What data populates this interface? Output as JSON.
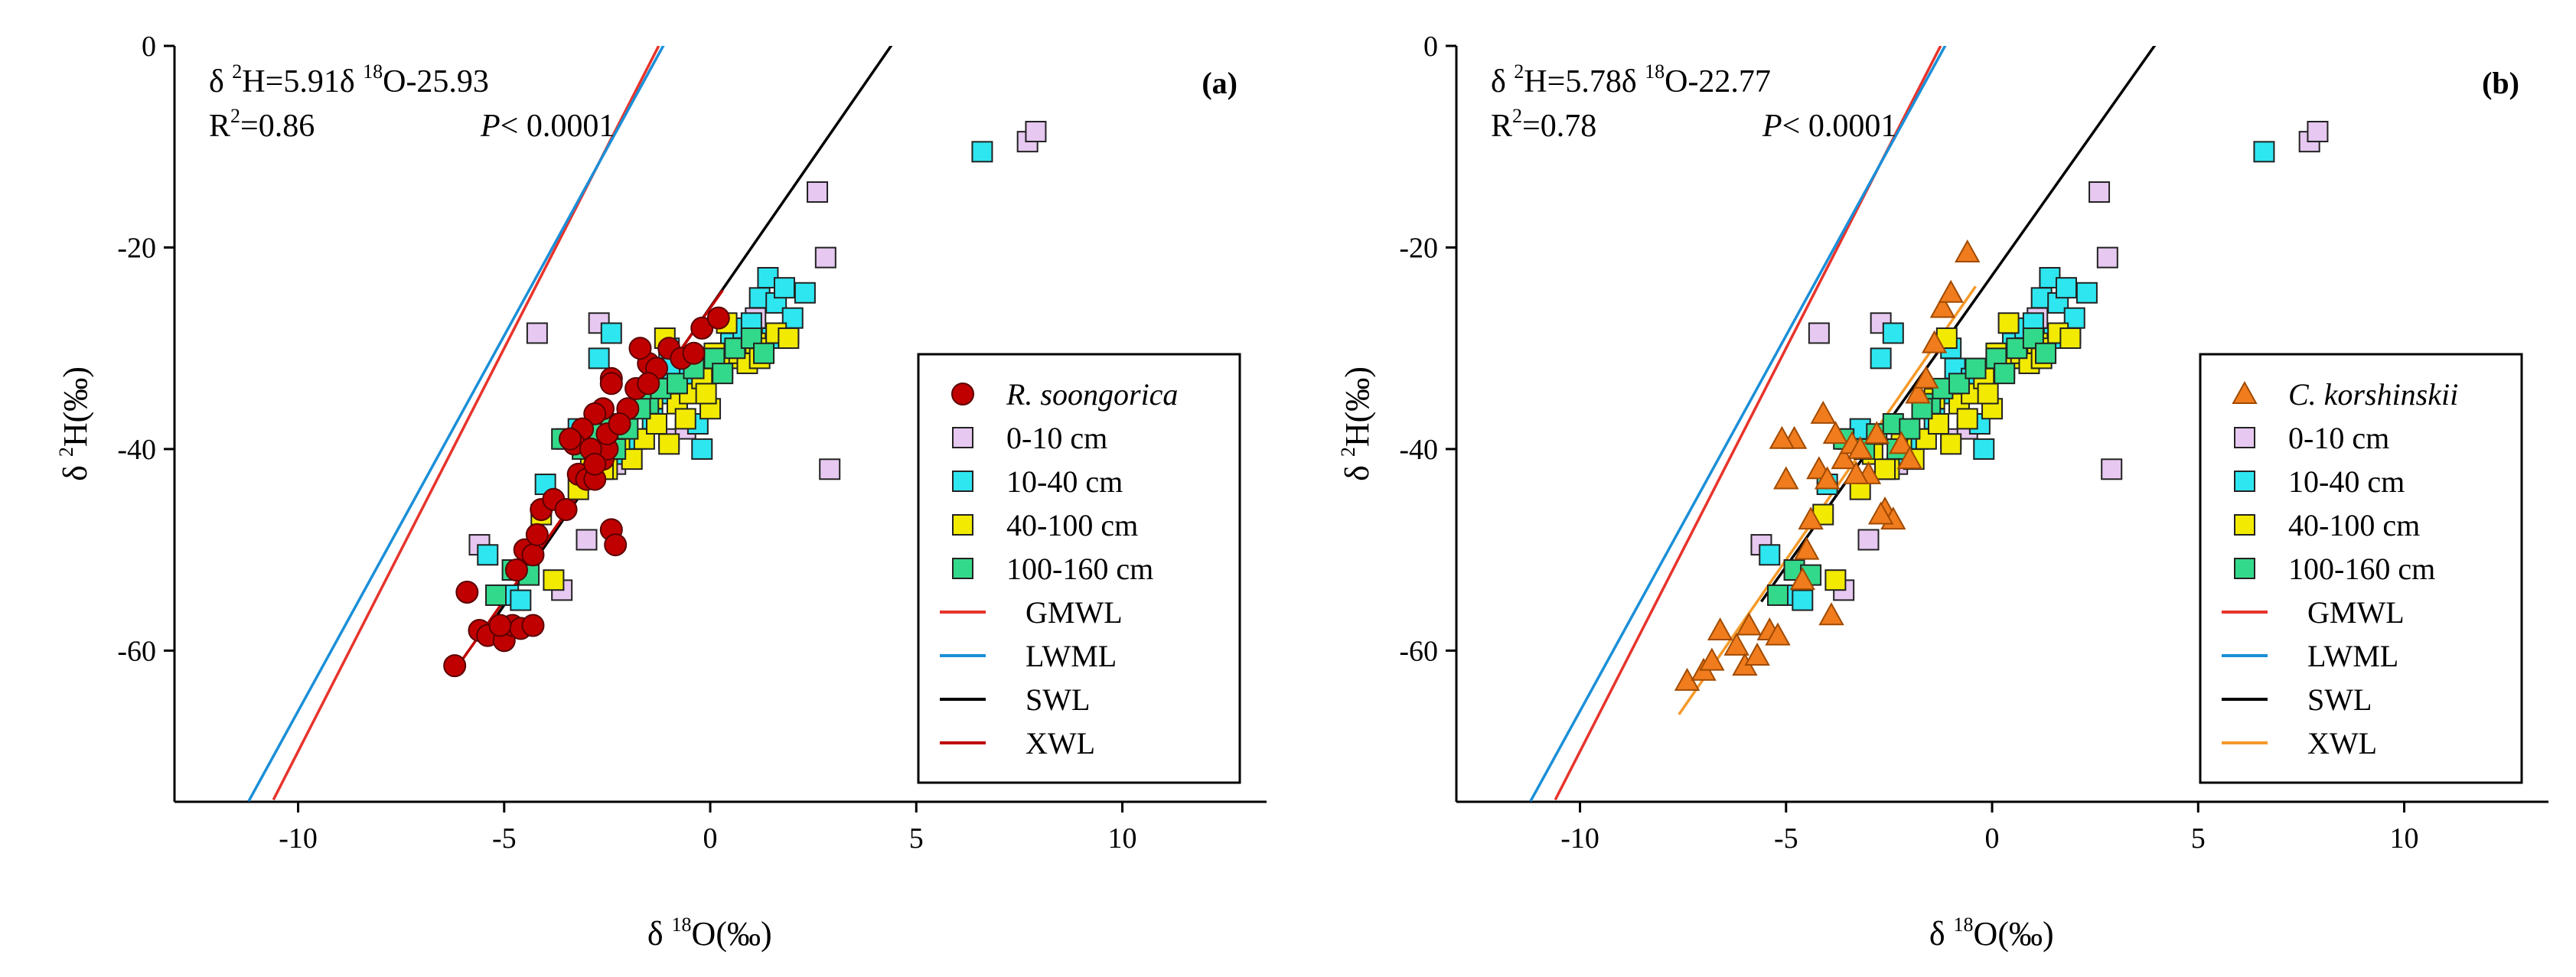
{
  "chart_data": [
    {
      "type": "scatter",
      "panel_label": "(a)",
      "equation": {
        "lhs_prefix": "δ ",
        "lhs_sup": "2",
        "lhs_rest": "H=5.91δ ",
        "rhs_sup": "18",
        "rhs_rest": "O-25.93",
        "r2_base": "R",
        "r2_sup": "2",
        "r2_rest": "=0.86",
        "p_label": "P",
        "p_rest": "< 0.0001"
      },
      "xlabel": {
        "prefix": "δ ",
        "sup": "18",
        "rest": "O(‰)"
      },
      "ylabel": {
        "prefix": "δ ",
        "sup": "2",
        "rest": "H(‰)"
      },
      "xlim": [
        -13,
        13.5
      ],
      "ylim": [
        -75,
        0
      ],
      "xticks": [
        -10,
        -5,
        0,
        5,
        10
      ],
      "yticks": [
        0,
        -20,
        -40,
        -60
      ],
      "legend": {
        "position": "right-middle",
        "entries": [
          {
            "label": "R. soongorica",
            "italic": true,
            "kind": "circle",
            "color": "#c00000"
          },
          {
            "label": "0-10 cm",
            "kind": "square",
            "color": "#e6c8f0"
          },
          {
            "label": "10-40 cm",
            "kind": "square",
            "color": "#2ee6f0"
          },
          {
            "label": "40-100 cm",
            "kind": "square",
            "color": "#f2ea00"
          },
          {
            "label": "100-160 cm",
            "kind": "square",
            "color": "#33d98a"
          },
          {
            "label": "GMWL",
            "kind": "line",
            "color": "#e8332b"
          },
          {
            "label": "LWML",
            "kind": "line",
            "color": "#1a8fd8"
          },
          {
            "label": "SWL",
            "kind": "line",
            "color": "#000000"
          },
          {
            "label": "XWL",
            "kind": "line",
            "color": "#c00000"
          }
        ]
      },
      "lines": [
        {
          "name": "GMWL",
          "color": "#e8332b",
          "slope": 8.0,
          "intercept": 10.0,
          "x": [
            -10.6,
            -1.25
          ]
        },
        {
          "name": "LWML",
          "color": "#1a8fd8",
          "slope": 7.45,
          "intercept": 8.5,
          "x": [
            -11.2,
            -0.6
          ]
        },
        {
          "name": "SWL",
          "color": "#000000",
          "slope": 5.91,
          "intercept": -25.93,
          "x": [
            -5.6,
            8.0
          ]
        },
        {
          "name": "XWL",
          "color": "#c00000",
          "slope": 5.8,
          "intercept": -26.0,
          "x": [
            -6.3,
            0.3
          ]
        }
      ],
      "series": [
        {
          "name": "R. soongorica",
          "kind": "circle",
          "color": "#c00000",
          "x": [
            -6.2,
            -5.9,
            -5.6,
            -5.4,
            -5.0,
            -4.8,
            -4.6,
            -4.3,
            -5.1,
            -4.7,
            -4.5,
            -4.3,
            -4.2,
            -4.1,
            -3.8,
            -3.5,
            -3.2,
            -3.0,
            -2.8,
            -2.6,
            -2.5,
            -2.4,
            -2.3,
            -2.4,
            -2.6,
            -2.8,
            -3.1,
            -3.3,
            -2.9,
            -2.5,
            -2.0,
            -1.8,
            -1.5,
            -1.3,
            -1.0,
            -0.7,
            -0.4,
            -0.2,
            0.2,
            -1.5,
            -2.2,
            -2.4,
            -1.7,
            -3.4,
            -2.8
          ],
          "y": [
            -61.5,
            -54.2,
            -58.0,
            -58.5,
            -59.0,
            -57.5,
            -57.8,
            -57.5,
            -57.5,
            -52.0,
            -50.0,
            -50.5,
            -48.5,
            -46.0,
            -45.0,
            -46.0,
            -42.5,
            -43.0,
            -43.0,
            -41.0,
            -40.0,
            -48.0,
            -49.5,
            -33.0,
            -36.0,
            -36.5,
            -38.0,
            -39.5,
            -40.0,
            -38.5,
            -36.0,
            -34.0,
            -31.5,
            -32.0,
            -30.0,
            -31.0,
            -30.5,
            -28.0,
            -27.0,
            -33.5,
            -37.5,
            -33.5,
            -30.0,
            -39.0,
            -41.5
          ]
        },
        {
          "name": "0-10 cm",
          "kind": "square",
          "color": "#e6c8f0",
          "x": [
            -5.6,
            -4.2,
            -3.6,
            -2.7,
            -2.3,
            -1.0,
            -0.6,
            -0.2,
            0.8,
            1.1,
            1.9,
            2.6,
            2.8,
            2.9,
            7.7,
            7.9,
            -3.0,
            -0.3
          ],
          "y": [
            -49.5,
            -28.5,
            -54.0,
            -27.5,
            -41.5,
            -39.0,
            -38.0,
            -33.5,
            -28.5,
            -27.0,
            -28.5,
            -14.5,
            -21.0,
            -42.0,
            -9.5,
            -8.5,
            -49.0,
            -33.0
          ]
        },
        {
          "name": "10-40 cm",
          "kind": "square",
          "color": "#2ee6f0",
          "x": [
            -5.4,
            -4.9,
            -4.6,
            -4.0,
            -3.5,
            -3.2,
            -2.7,
            -2.4,
            -2.2,
            -1.8,
            -1.4,
            -1.2,
            -0.9,
            -0.5,
            -0.2,
            0.2,
            0.5,
            0.8,
            1.0,
            1.2,
            1.4,
            1.6,
            1.8,
            2.0,
            2.3,
            6.6,
            -0.3,
            0.6,
            1.5,
            -1.0
          ],
          "y": [
            -50.5,
            -54.5,
            -55.0,
            -43.5,
            -39.0,
            -38.0,
            -31.0,
            -28.5,
            -40.5,
            -39.0,
            -37.0,
            -34.5,
            -32.0,
            -33.0,
            -40.0,
            -30.5,
            -29.5,
            -28.0,
            -27.5,
            -25.0,
            -23.0,
            -25.5,
            -24.0,
            -27.0,
            -24.5,
            -10.5,
            -37.5,
            -31.0,
            -29.0,
            -30.0
          ]
        },
        {
          "name": "40-100 cm",
          "kind": "square",
          "color": "#f2ea00",
          "x": [
            -4.1,
            -3.8,
            -3.2,
            -2.9,
            -2.5,
            -2.2,
            -1.9,
            -1.6,
            -1.3,
            -1.0,
            -0.8,
            -0.5,
            -0.2,
            0.0,
            0.3,
            0.5,
            0.7,
            0.9,
            1.1,
            1.3,
            1.6,
            1.9,
            -1.1,
            0.1,
            -0.6,
            -1.4,
            -2.6,
            0.4,
            1.2,
            -0.1
          ],
          "y": [
            -46.5,
            -53.0,
            -44.0,
            -40.5,
            -42.0,
            -39.5,
            -41.0,
            -39.0,
            -37.5,
            -39.5,
            -35.5,
            -34.5,
            -33.0,
            -36.0,
            -32.0,
            -31.0,
            -30.5,
            -31.5,
            -29.5,
            -30.0,
            -28.5,
            -29.0,
            -29.0,
            -30.5,
            -37.0,
            -35.0,
            -42.0,
            -27.5,
            -31.0,
            -34.5
          ]
        },
        {
          "name": "100-160 cm",
          "kind": "square",
          "color": "#33d98a",
          "x": [
            -5.2,
            -4.8,
            -4.4,
            -3.6,
            -3.1,
            -2.8,
            -2.4,
            -2.0,
            -1.5,
            -1.2,
            -0.8,
            -0.4,
            0.1,
            0.6,
            1.0,
            1.3,
            -2.3,
            -1.7,
            0.3
          ],
          "y": [
            -54.5,
            -52.0,
            -52.5,
            -39.0,
            -40.0,
            -38.5,
            -37.5,
            -38.0,
            -35.5,
            -34.0,
            -33.5,
            -32.0,
            -31.0,
            -30.0,
            -29.0,
            -30.5,
            -40.0,
            -36.0,
            -32.5
          ]
        }
      ]
    },
    {
      "type": "scatter",
      "panel_label": "(b)",
      "equation": {
        "lhs_prefix": "δ ",
        "lhs_sup": "2",
        "lhs_rest": "H=5.78δ ",
        "rhs_sup": "18",
        "rhs_rest": "O-22.77",
        "r2_base": "R",
        "r2_sup": "2",
        "r2_rest": "=0.78",
        "p_label": "P",
        "p_rest": "< 0.0001"
      },
      "xlabel": {
        "prefix": "δ ",
        "sup": "18",
        "rest": "O(‰)"
      },
      "ylabel": {
        "prefix": "δ ",
        "sup": "2",
        "rest": "H(‰)"
      },
      "xlim": [
        -13,
        13.5
      ],
      "ylim": [
        -75,
        0
      ],
      "xticks": [
        -10,
        -5,
        0,
        5,
        10
      ],
      "yticks": [
        0,
        -20,
        -40,
        -60
      ],
      "legend": {
        "position": "right-middle",
        "entries": [
          {
            "label": "C. korshinskii",
            "italic": true,
            "kind": "triangle",
            "color": "#f07c1e"
          },
          {
            "label": "0-10 cm",
            "kind": "square",
            "color": "#e6c8f0"
          },
          {
            "label": "10-40 cm",
            "kind": "square",
            "color": "#2ee6f0"
          },
          {
            "label": "40-100 cm",
            "kind": "square",
            "color": "#f2ea00"
          },
          {
            "label": "100-160 cm",
            "kind": "square",
            "color": "#33d98a"
          },
          {
            "label": "GMWL",
            "kind": "line",
            "color": "#e8332b"
          },
          {
            "label": "LWML",
            "kind": "line",
            "color": "#1a8fd8"
          },
          {
            "label": "SWL",
            "kind": "line",
            "color": "#000000"
          },
          {
            "label": "XWL",
            "kind": "line",
            "color": "#f59a2a"
          }
        ]
      },
      "lines": [
        {
          "name": "GMWL",
          "color": "#e8332b",
          "slope": 8.0,
          "intercept": 10.0,
          "x": [
            -10.6,
            -1.25
          ]
        },
        {
          "name": "LWML",
          "color": "#1a8fd8",
          "slope": 7.45,
          "intercept": 8.5,
          "x": [
            -11.2,
            -0.6
          ]
        },
        {
          "name": "SWL",
          "color": "#000000",
          "slope": 5.78,
          "intercept": -22.77,
          "x": [
            -5.6,
            8.0
          ]
        },
        {
          "name": "XWL",
          "color": "#f59a2a",
          "slope": 5.9,
          "intercept": -21.5,
          "x": [
            -7.6,
            -0.4
          ]
        }
      ],
      "series": [
        {
          "name": "C. korshinskii",
          "kind": "triangle",
          "color": "#f07c1e",
          "x": [
            -7.4,
            -7.0,
            -6.6,
            -6.2,
            -6.0,
            -5.7,
            -5.4,
            -5.2,
            -5.0,
            -4.8,
            -4.6,
            -4.4,
            -4.2,
            -4.0,
            -3.8,
            -3.6,
            -3.4,
            -3.2,
            -3.0,
            -2.8,
            -2.6,
            -2.4,
            -2.2,
            -2.0,
            -1.8,
            -1.6,
            -1.4,
            -1.2,
            -1.0,
            -0.6,
            -5.1,
            -4.1,
            -3.9,
            -2.7,
            -6.8,
            -5.9,
            -4.5,
            -3.3
          ],
          "y": [
            -63.0,
            -62.0,
            -58.0,
            -59.5,
            -61.5,
            -60.5,
            -58.0,
            -58.5,
            -43.0,
            -39.0,
            -53.0,
            -47.0,
            -42.0,
            -43.0,
            -38.5,
            -41.0,
            -39.5,
            -40.0,
            -42.5,
            -38.5,
            -46.0,
            -47.0,
            -39.5,
            -41.0,
            -34.5,
            -33.0,
            -29.5,
            -26.0,
            -24.5,
            -20.5,
            -39.0,
            -36.5,
            -56.5,
            -46.5,
            -61.0,
            -57.5,
            -50.0,
            -42.5
          ]
        },
        {
          "name": "0-10 cm",
          "kind": "square",
          "color": "#e6c8f0",
          "x": [
            -5.6,
            -4.2,
            -3.6,
            -2.7,
            -2.3,
            -1.0,
            -0.6,
            -0.2,
            0.8,
            1.1,
            1.9,
            2.6,
            2.8,
            2.9,
            7.7,
            7.9,
            -3.0,
            -0.3
          ],
          "y": [
            -49.5,
            -28.5,
            -54.0,
            -27.5,
            -41.5,
            -39.0,
            -38.0,
            -33.5,
            -28.5,
            -27.0,
            -28.5,
            -14.5,
            -21.0,
            -42.0,
            -9.5,
            -8.5,
            -49.0,
            -33.0
          ]
        },
        {
          "name": "10-40 cm",
          "kind": "square",
          "color": "#2ee6f0",
          "x": [
            -5.4,
            -4.9,
            -4.6,
            -4.0,
            -3.5,
            -3.2,
            -2.7,
            -2.4,
            -2.2,
            -1.8,
            -1.4,
            -1.2,
            -0.9,
            -0.5,
            -0.2,
            0.2,
            0.5,
            0.8,
            1.0,
            1.2,
            1.4,
            1.6,
            1.8,
            2.0,
            2.3,
            6.6,
            -0.3,
            0.6,
            1.5,
            -1.0
          ],
          "y": [
            -50.5,
            -54.5,
            -55.0,
            -43.5,
            -39.0,
            -38.0,
            -31.0,
            -28.5,
            -40.5,
            -39.0,
            -37.0,
            -34.5,
            -32.0,
            -33.0,
            -40.0,
            -30.5,
            -29.5,
            -28.0,
            -27.5,
            -25.0,
            -23.0,
            -25.5,
            -24.0,
            -27.0,
            -24.5,
            -10.5,
            -37.5,
            -31.0,
            -29.0,
            -30.0
          ]
        },
        {
          "name": "40-100 cm",
          "kind": "square",
          "color": "#f2ea00",
          "x": [
            -4.1,
            -3.8,
            -3.2,
            -2.9,
            -2.5,
            -2.2,
            -1.9,
            -1.6,
            -1.3,
            -1.0,
            -0.8,
            -0.5,
            -0.2,
            0.0,
            0.3,
            0.5,
            0.7,
            0.9,
            1.1,
            1.3,
            1.6,
            1.9,
            -1.1,
            0.1,
            -0.6,
            -1.4,
            -2.6,
            0.4,
            1.2,
            -0.1
          ],
          "y": [
            -46.5,
            -53.0,
            -44.0,
            -40.5,
            -42.0,
            -39.5,
            -41.0,
            -39.0,
            -37.5,
            -39.5,
            -35.5,
            -34.5,
            -33.0,
            -36.0,
            -32.0,
            -31.0,
            -30.5,
            -31.5,
            -29.5,
            -30.0,
            -28.5,
            -29.0,
            -29.0,
            -30.5,
            -37.0,
            -35.0,
            -42.0,
            -27.5,
            -31.0,
            -34.5
          ]
        },
        {
          "name": "100-160 cm",
          "kind": "square",
          "color": "#33d98a",
          "x": [
            -5.2,
            -4.8,
            -4.4,
            -3.6,
            -3.1,
            -2.8,
            -2.4,
            -2.0,
            -1.5,
            -1.2,
            -0.8,
            -0.4,
            0.1,
            0.6,
            1.0,
            1.3,
            -2.3,
            -1.7,
            0.3
          ],
          "y": [
            -54.5,
            -52.0,
            -52.5,
            -39.0,
            -40.0,
            -38.5,
            -37.5,
            -38.0,
            -35.5,
            -34.0,
            -33.5,
            -32.0,
            -31.0,
            -30.0,
            -29.0,
            -30.5,
            -40.0,
            -36.0,
            -32.5
          ]
        }
      ]
    }
  ]
}
